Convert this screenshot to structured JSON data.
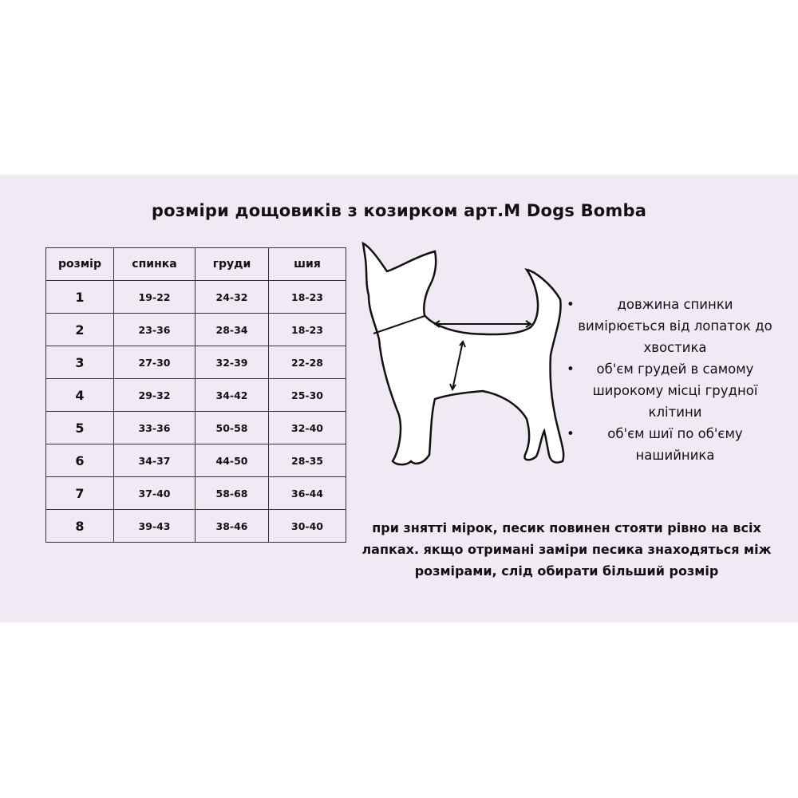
{
  "title": "розміри дощовиків з козирком арт.M Dogs Bomba",
  "table": {
    "headers": [
      "розмір",
      "спинка",
      "груди",
      "шия"
    ],
    "rows": [
      [
        "1",
        "19-22",
        "24-32",
        "18-23"
      ],
      [
        "2",
        "23-36",
        "28-34",
        "18-23"
      ],
      [
        "3",
        "27-30",
        "32-39",
        "22-28"
      ],
      [
        "4",
        "29-32",
        "34-42",
        "25-30"
      ],
      [
        "5",
        "33-36",
        "50-58",
        "32-40"
      ],
      [
        "6",
        "34-37",
        "44-50",
        "28-35"
      ],
      [
        "7",
        "37-40",
        "58-68",
        "36-44"
      ],
      [
        "8",
        "39-43",
        "38-46",
        "30-40"
      ]
    ]
  },
  "notes": [
    "довжина спинки вимірюється від лопаток до хвостика",
    "об'єм грудей в самому широкому місці грудної клітини",
    "об'єм шиї по об'єму нашийника"
  ],
  "footer": "при знятті мірок, песик повинен стояти рівно на всіх лапках. якщо отримані заміри песика знаходяться між розмірами, слід обирати більший розмір",
  "colors": {
    "background": "#f1eaf5",
    "text": "#111111"
  },
  "illustration": "dog-silhouette-with-measurement-arrows"
}
